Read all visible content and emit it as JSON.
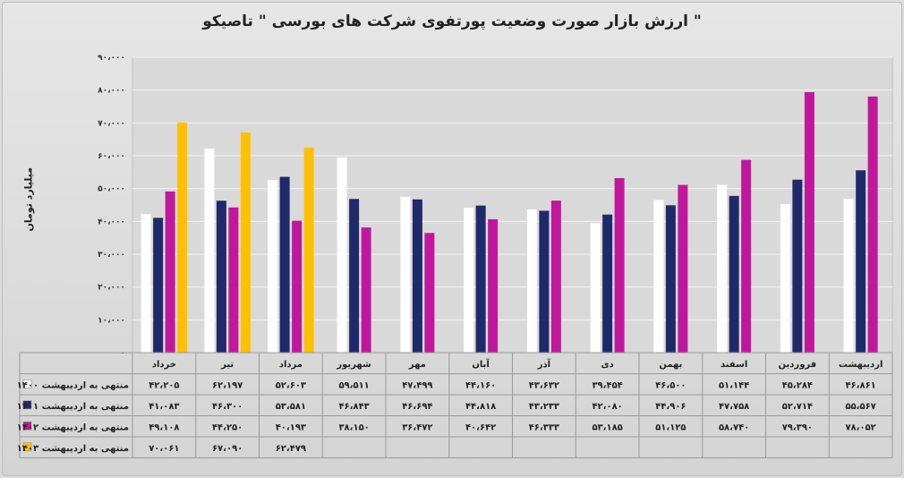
{
  "chart_data": {
    "type": "bar",
    "title": "ارزش بازار صورت وضعیت پورتفوی شرکت های بورسی \" تاصیکو \"",
    "ylabel": "میلیارد تومان",
    "ylim": [
      0,
      90000
    ],
    "yticks": [
      "۹۰،۰۰۰",
      "۸۰،۰۰۰",
      "۷۰،۰۰۰",
      "۶۰،۰۰۰",
      "۵۰،۰۰۰",
      "۴۰،۰۰۰",
      "۳۰،۰۰۰",
      "۲۰،۰۰۰",
      "۱۰،۰۰۰",
      "۰"
    ],
    "grid": true,
    "categories": [
      "خرداد",
      "تیر",
      "مرداد",
      "شهریور",
      "مهر",
      "آبان",
      "آذر",
      "دی",
      "بهمن",
      "اسفند",
      "فروردین",
      "اردیبهشت"
    ],
    "series": [
      {
        "name": "منتهی به اردیبهشت ۱۴۰۰",
        "color": "#ffffff",
        "values": [
          42205,
          62197,
          52603,
          59511,
          47499,
          44160,
          43632,
          39454,
          46500,
          51144,
          45284,
          46861
        ],
        "labels": [
          "۴۲،۲۰۵",
          "۶۲،۱۹۷",
          "۵۲،۶۰۳",
          "۵۹،۵۱۱",
          "۴۷،۴۹۹",
          "۴۴،۱۶۰",
          "۴۳،۶۳۲",
          "۳۹،۴۵۴",
          "۴۶،۵۰۰",
          "۵۱،۱۴۴",
          "۴۵،۲۸۴",
          "۴۶،۸۶۱"
        ]
      },
      {
        "name": "منتهی به اردیبهشت ۱۴۰۱",
        "color": "#1f2a6b",
        "values": [
          41083,
          46300,
          53581,
          46843,
          46694,
          44818,
          43233,
          42080,
          44906,
          47758,
          52714,
          55567
        ],
        "labels": [
          "۴۱،۰۸۳",
          "۴۶،۳۰۰",
          "۵۳،۵۸۱",
          "۴۶،۸۴۳",
          "۴۶،۶۹۴",
          "۴۴،۸۱۸",
          "۴۳،۲۳۳",
          "۴۲،۰۸۰",
          "۴۴،۹۰۶",
          "۴۷،۷۵۸",
          "۵۲،۷۱۴",
          "۵۵،۵۶۷"
        ]
      },
      {
        "name": "منتهی به اردیبهشت ۱۴۰۲",
        "color": "#c0189c",
        "values": [
          49108,
          44250,
          40193,
          38150,
          36472,
          40642,
          46333,
          53185,
          51125,
          58740,
          79390,
          78052
        ],
        "labels": [
          "۴۹،۱۰۸",
          "۴۴،۲۵۰",
          "۴۰،۱۹۳",
          "۳۸،۱۵۰",
          "۳۶،۴۷۲",
          "۴۰،۶۴۲",
          "۴۶،۳۳۳",
          "۵۳،۱۸۵",
          "۵۱،۱۲۵",
          "۵۸،۷۴۰",
          "۷۹،۳۹۰",
          "۷۸،۰۵۲"
        ]
      },
      {
        "name": "منتهی به اردیبهشت ۱۴۰۳",
        "color": "#ffc000",
        "values": [
          70061,
          67090,
          62479,
          null,
          null,
          null,
          null,
          null,
          null,
          null,
          null,
          null
        ],
        "labels": [
          "۷۰،۰۶۱",
          "۶۷،۰۹۰",
          "۶۲،۴۷۹",
          "",
          "",
          "",
          "",
          "",
          "",
          "",
          "",
          ""
        ]
      }
    ]
  }
}
